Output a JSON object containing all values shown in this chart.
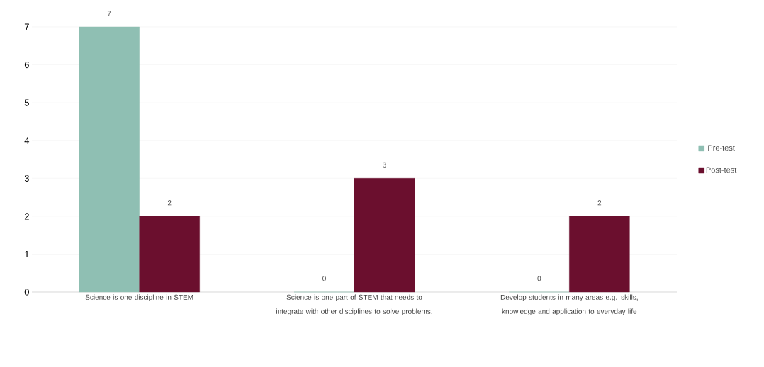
{
  "chart_data": {
    "type": "bar",
    "categories": [
      "Science is one discipline in STEM",
      "Science is one part of STEM that needs to integrate with other disciplines to solve problems.",
      "Develop students in many areas e.g. skills, knowledge and application to everyday life"
    ],
    "series": [
      {
        "name": "Pre-test",
        "color": "#8fbfb3",
        "values": [
          7,
          0,
          0
        ]
      },
      {
        "name": "Post-test",
        "color": "#6b0f2e",
        "values": [
          2,
          3,
          2
        ]
      }
    ],
    "ylim": [
      0,
      7
    ],
    "yticks": [
      0,
      1,
      2,
      3,
      4,
      5,
      6,
      7
    ],
    "grid": "y",
    "legend": "right",
    "data_labels": true
  }
}
